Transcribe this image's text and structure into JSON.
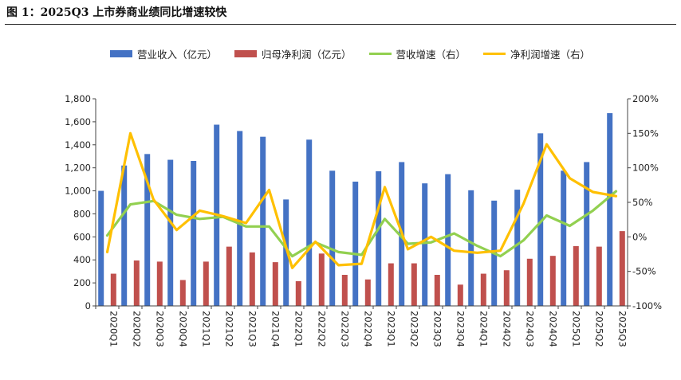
{
  "figure": {
    "title": "图 1：2025Q3 上市券商业绩同比增速较快"
  },
  "chart_data": {
    "type": "bar",
    "title": "图 1：2025Q3 上市券商业绩同比增速较快",
    "categories": [
      "2020Q1",
      "2020Q2",
      "2020Q3",
      "2020Q4",
      "2021Q1",
      "2021Q2",
      "2021Q3",
      "2021Q4",
      "2022Q1",
      "2022Q2",
      "2022Q3",
      "2022Q4",
      "2023Q1",
      "2023Q2",
      "2023Q3",
      "2023Q4",
      "2024Q1",
      "2024Q2",
      "2024Q3",
      "2024Q4",
      "2025Q1",
      "2025Q2",
      "2025Q3"
    ],
    "series": [
      {
        "name": "营业收入（亿元）",
        "type": "bar",
        "axis": "left",
        "color": "#4472C4",
        "values": [
          1000,
          1220,
          1320,
          1270,
          1260,
          1575,
          1520,
          1470,
          925,
          1445,
          1175,
          1080,
          1170,
          1250,
          1065,
          1145,
          1005,
          915,
          1010,
          1500,
          1175,
          1250,
          1675
        ]
      },
      {
        "name": "归母净利润（亿元）",
        "type": "bar",
        "axis": "left",
        "color": "#C0504D",
        "values": [
          280,
          395,
          385,
          225,
          385,
          515,
          465,
          380,
          215,
          455,
          270,
          230,
          370,
          370,
          270,
          185,
          280,
          310,
          410,
          435,
          520,
          515,
          650
        ]
      },
      {
        "name": "营收增速（右）",
        "type": "line",
        "axis": "right",
        "color": "#92D050",
        "values": [
          2,
          47,
          52,
          32,
          26,
          29,
          15,
          15,
          -28,
          -8,
          -22,
          -26,
          26,
          -10,
          -8,
          5,
          -13,
          -28,
          -5,
          31,
          16,
          38,
          66
        ]
      },
      {
        "name": "净利润增速（右）",
        "type": "line",
        "axis": "right",
        "color": "#FFC000",
        "values": [
          -22,
          150,
          54,
          10,
          38,
          30,
          20,
          68,
          -45,
          -7,
          -41,
          -39,
          72,
          -18,
          0,
          -20,
          -23,
          -20,
          48,
          134,
          85,
          65,
          59
        ]
      }
    ],
    "y_left": {
      "min": 0,
      "max": 1800,
      "step": 200,
      "tick_labels": [
        "0",
        "200",
        "400",
        "600",
        "800",
        "1,000",
        "1,200",
        "1,400",
        "1,600",
        "1,800"
      ]
    },
    "y_right": {
      "min": -100,
      "max": 200,
      "step": 50,
      "tick_labels": [
        "-100%",
        "-50%",
        "0%",
        "50%",
        "100%",
        "150%",
        "200%"
      ]
    },
    "legend": {
      "position": "top"
    },
    "grid": false
  }
}
